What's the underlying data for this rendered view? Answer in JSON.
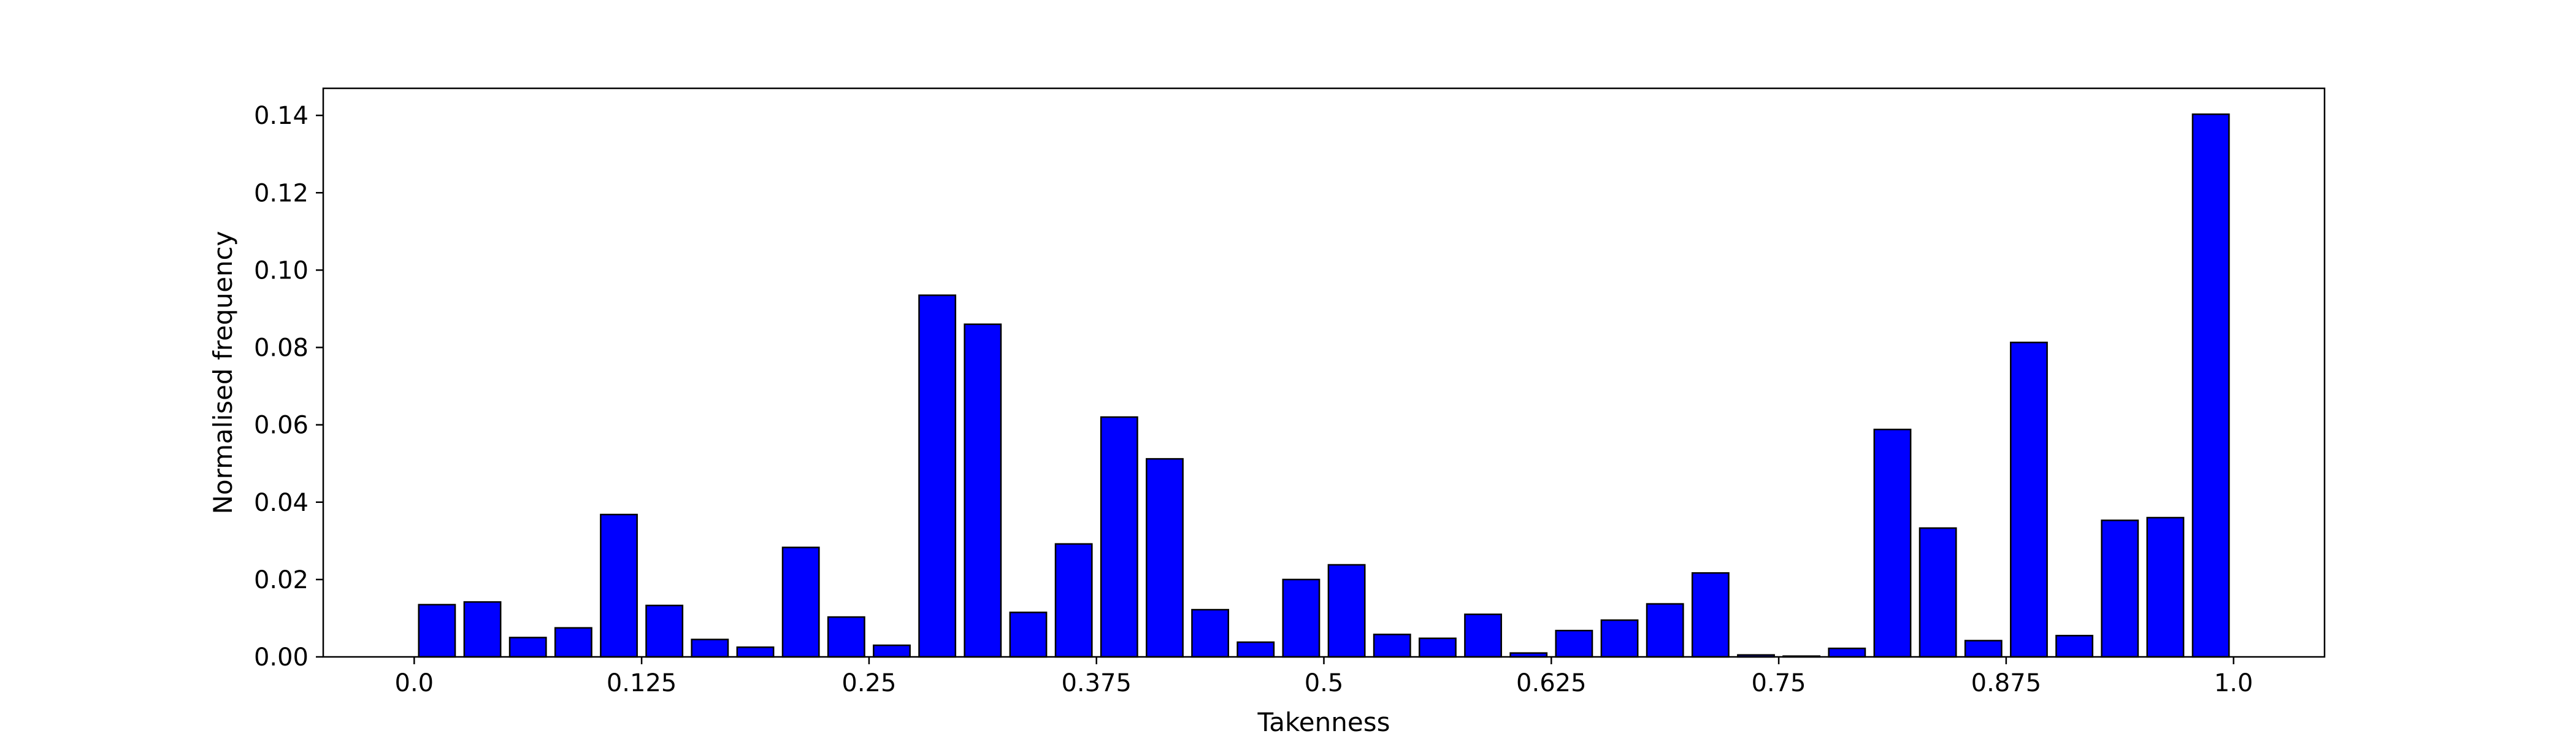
{
  "chart_data": {
    "type": "bar",
    "title": "",
    "xlabel": "Takenness",
    "ylabel": "Normalised frequency",
    "xlim": [
      -0.05,
      1.05
    ],
    "ylim": [
      0,
      0.147
    ],
    "x_ticks": [
      "0.0",
      "0.125",
      "0.25",
      "0.375",
      "0.5",
      "0.625",
      "0.75",
      "0.875",
      "1.0"
    ],
    "x_tick_values": [
      0,
      0.125,
      0.25,
      0.375,
      0.5,
      0.625,
      0.75,
      0.875,
      1.0
    ],
    "y_ticks": [
      "0.00",
      "0.02",
      "0.04",
      "0.06",
      "0.08",
      "0.10",
      "0.12",
      "0.14"
    ],
    "y_tick_values": [
      0,
      0.02,
      0.04,
      0.06,
      0.08,
      0.1,
      0.12,
      0.14
    ],
    "bar_width": 0.02,
    "bar_color": "#0000ff",
    "edge_color": "#000000",
    "grid": false,
    "bars": [
      {
        "x": 0.0125,
        "y": 0.0135
      },
      {
        "x": 0.0375,
        "y": 0.0142
      },
      {
        "x": 0.0625,
        "y": 0.005
      },
      {
        "x": 0.0875,
        "y": 0.0075
      },
      {
        "x": 0.1125,
        "y": 0.0368
      },
      {
        "x": 0.1375,
        "y": 0.0133
      },
      {
        "x": 0.1625,
        "y": 0.0045
      },
      {
        "x": 0.1875,
        "y": 0.0025
      },
      {
        "x": 0.2125,
        "y": 0.0283
      },
      {
        "x": 0.2375,
        "y": 0.0103
      },
      {
        "x": 0.2625,
        "y": 0.003
      },
      {
        "x": 0.2875,
        "y": 0.0935
      },
      {
        "x": 0.3125,
        "y": 0.086
      },
      {
        "x": 0.3375,
        "y": 0.0115
      },
      {
        "x": 0.3625,
        "y": 0.0292
      },
      {
        "x": 0.3875,
        "y": 0.062
      },
      {
        "x": 0.4125,
        "y": 0.0512
      },
      {
        "x": 0.4375,
        "y": 0.0122
      },
      {
        "x": 0.4625,
        "y": 0.0038
      },
      {
        "x": 0.4875,
        "y": 0.02
      },
      {
        "x": 0.5125,
        "y": 0.0238
      },
      {
        "x": 0.5375,
        "y": 0.0058
      },
      {
        "x": 0.5625,
        "y": 0.0048
      },
      {
        "x": 0.5875,
        "y": 0.011
      },
      {
        "x": 0.6125,
        "y": 0.001
      },
      {
        "x": 0.6375,
        "y": 0.0068
      },
      {
        "x": 0.6625,
        "y": 0.0095
      },
      {
        "x": 0.6875,
        "y": 0.0137
      },
      {
        "x": 0.7125,
        "y": 0.0217
      },
      {
        "x": 0.7375,
        "y": 0.0005
      },
      {
        "x": 0.7625,
        "y": 0.0002
      },
      {
        "x": 0.7875,
        "y": 0.0022
      },
      {
        "x": 0.8125,
        "y": 0.0588
      },
      {
        "x": 0.8375,
        "y": 0.0333
      },
      {
        "x": 0.8625,
        "y": 0.0042
      },
      {
        "x": 0.8875,
        "y": 0.0813
      },
      {
        "x": 0.9125,
        "y": 0.0055
      },
      {
        "x": 0.9375,
        "y": 0.0353
      },
      {
        "x": 0.9625,
        "y": 0.036
      },
      {
        "x": 0.9875,
        "y": 0.1403
      }
    ]
  }
}
